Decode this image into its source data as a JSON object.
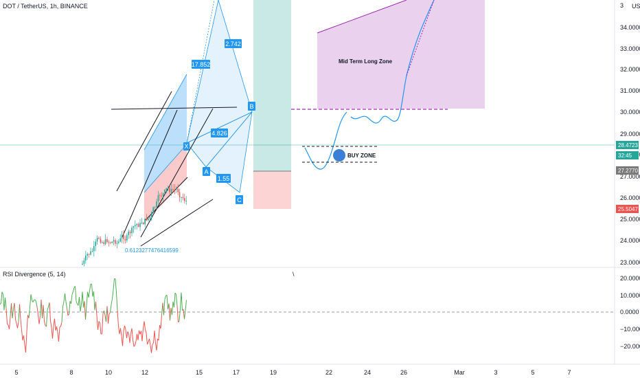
{
  "header": {
    "symbol_line": "DOT / TetherUS, 1h, BINANCE",
    "currency": "USDT"
  },
  "price_axis": {
    "ticks": [
      "3",
      "34.0000",
      "33.0000",
      "32.0000",
      "31.0000",
      "30.0000",
      "29.0000",
      "28.0000",
      "27.0000",
      "26.0000",
      "25.0000",
      "24.0000",
      "23.0000"
    ],
    "ylim": [
      22.9,
      36.4
    ]
  },
  "price_tags": [
    {
      "name": "last-price-tag",
      "text": "28.4723",
      "value": 28.4723,
      "color": "#26a69a"
    },
    {
      "name": "countdown-tag",
      "text": "32:45",
      "value": 28.12,
      "color": "#26a69a"
    },
    {
      "name": "target-price-tag",
      "text": "27.2770",
      "value": 27.277,
      "color": "#7a7a7a"
    },
    {
      "name": "stop-price-tag",
      "text": "25.5047",
      "value": 25.5047,
      "color": "#ef5350"
    }
  ],
  "time_axis": {
    "ticks": [
      "5",
      "8",
      "10",
      "12",
      "15",
      "17",
      "19",
      "22",
      "24",
      "26",
      "Mar",
      "3",
      "5",
      "7"
    ]
  },
  "pattern_labels": {
    "ratio_top": "17.852",
    "ratio_right": "2.742",
    "ratio_mid": "4.826",
    "ratio_low": "1.55",
    "point_a": "A",
    "point_b": "B",
    "point_c": "C",
    "point_x": "X"
  },
  "annotations": {
    "mid_term_zone": "Mid Term Long Zone",
    "buy_zone": "BUY ZONE",
    "fib_text": "0.6123277476416599"
  },
  "rsi_pane": {
    "title": "RSI Divergence (5, 14)",
    "marker": "\\",
    "ticks": [
      "20.0000",
      "10.0000",
      "0.0000",
      "−10.0000",
      "−20.0000"
    ],
    "ylim": [
      -27,
      23
    ]
  },
  "colors": {
    "green": "#26a69a",
    "red": "#ef5350",
    "pattern_blue": "#2196f3",
    "zone_purple": "#e1bee7",
    "zone_purple_line": "#9c27b0"
  }
}
